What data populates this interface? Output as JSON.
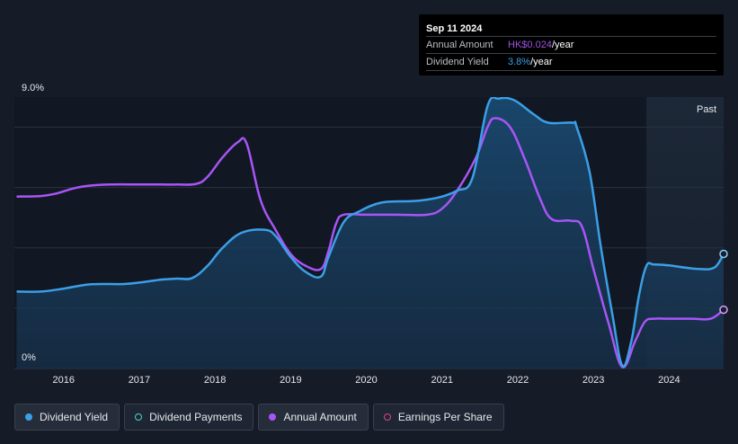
{
  "tooltip": {
    "date": "Sep 11 2024",
    "rows": [
      {
        "label": "Annual Amount",
        "value_highlight": "HK$0.024",
        "value_suffix": "/year",
        "color": "#9f52e6"
      },
      {
        "label": "Dividend Yield",
        "value_highlight": "3.8%",
        "value_suffix": "/year",
        "color": "#3b9fe8"
      }
    ]
  },
  "legend": [
    {
      "label": "Dividend Yield",
      "style": "filled",
      "color": "#3b9fe8"
    },
    {
      "label": "Dividend Payments",
      "style": "hollow",
      "color": "#4fd1c5"
    },
    {
      "label": "Annual Amount",
      "style": "filled",
      "color": "#a855f7"
    },
    {
      "label": "Earnings Per Share",
      "style": "hollow",
      "color": "#e0457b"
    }
  ],
  "chart_data": {
    "type": "line",
    "x_unit": "year",
    "xlim": [
      2015.35,
      2024.72
    ],
    "ylim": [
      0,
      9.0
    ],
    "y_tick_labels": [
      "0%",
      "9.0%"
    ],
    "x_tick_labels": [
      "2016",
      "2017",
      "2018",
      "2019",
      "2020",
      "2021",
      "2022",
      "2023",
      "2024"
    ],
    "x_tick_values": [
      2016,
      2017,
      2018,
      2019,
      2020,
      2021,
      2022,
      2023,
      2024
    ],
    "past_label": "Past",
    "past_start": 2023.7,
    "grid": true,
    "series": [
      {
        "name": "Dividend Yield",
        "color": "#3b9fe8",
        "fill": true,
        "x": [
          2015.38,
          2015.7,
          2016.0,
          2016.3,
          2016.5,
          2016.8,
          2017.0,
          2017.3,
          2017.5,
          2017.7,
          2017.9,
          2018.1,
          2018.35,
          2018.65,
          2018.8,
          2019.0,
          2019.2,
          2019.4,
          2019.5,
          2019.7,
          2019.9,
          2020.2,
          2020.6,
          2020.8,
          2021.0,
          2021.2,
          2021.4,
          2021.6,
          2021.75,
          2021.95,
          2022.2,
          2022.4,
          2022.72,
          2022.78,
          2022.95,
          2023.1,
          2023.25,
          2023.38,
          2023.5,
          2023.6,
          2023.7,
          2023.8,
          2024.0,
          2024.2,
          2024.4,
          2024.6,
          2024.72
        ],
        "y": [
          2.55,
          2.55,
          2.65,
          2.78,
          2.8,
          2.8,
          2.85,
          2.95,
          2.98,
          3.0,
          3.4,
          4.0,
          4.5,
          4.6,
          4.4,
          3.7,
          3.2,
          3.05,
          3.7,
          4.85,
          5.2,
          5.5,
          5.55,
          5.6,
          5.7,
          5.9,
          6.3,
          8.7,
          8.95,
          8.9,
          8.45,
          8.15,
          8.15,
          8.0,
          6.5,
          4.0,
          1.8,
          0.1,
          0.9,
          2.4,
          3.4,
          3.45,
          3.42,
          3.35,
          3.3,
          3.35,
          3.8
        ]
      },
      {
        "name": "Annual Amount",
        "color": "#a855f7",
        "fill": false,
        "x": [
          2015.38,
          2015.7,
          2015.9,
          2016.1,
          2016.3,
          2016.6,
          2017.0,
          2017.3,
          2017.5,
          2017.75,
          2017.9,
          2018.1,
          2018.3,
          2018.42,
          2018.6,
          2018.8,
          2019.0,
          2019.2,
          2019.4,
          2019.5,
          2019.6,
          2019.7,
          2020.0,
          2020.4,
          2020.8,
          2021.0,
          2021.2,
          2021.45,
          2021.6,
          2021.7,
          2021.9,
          2022.1,
          2022.3,
          2022.45,
          2022.7,
          2022.85,
          2023.0,
          2023.2,
          2023.38,
          2023.55,
          2023.68,
          2023.8,
          2024.0,
          2024.3,
          2024.55,
          2024.72
        ],
        "y": [
          5.7,
          5.72,
          5.8,
          5.95,
          6.05,
          6.1,
          6.1,
          6.1,
          6.1,
          6.12,
          6.35,
          7.0,
          7.5,
          7.45,
          5.6,
          4.6,
          3.8,
          3.4,
          3.3,
          3.9,
          4.8,
          5.1,
          5.1,
          5.1,
          5.1,
          5.3,
          5.9,
          7.0,
          8.0,
          8.3,
          8.0,
          6.9,
          5.6,
          4.95,
          4.9,
          4.7,
          3.3,
          1.5,
          0.05,
          0.9,
          1.55,
          1.65,
          1.65,
          1.65,
          1.65,
          1.95
        ]
      }
    ]
  }
}
